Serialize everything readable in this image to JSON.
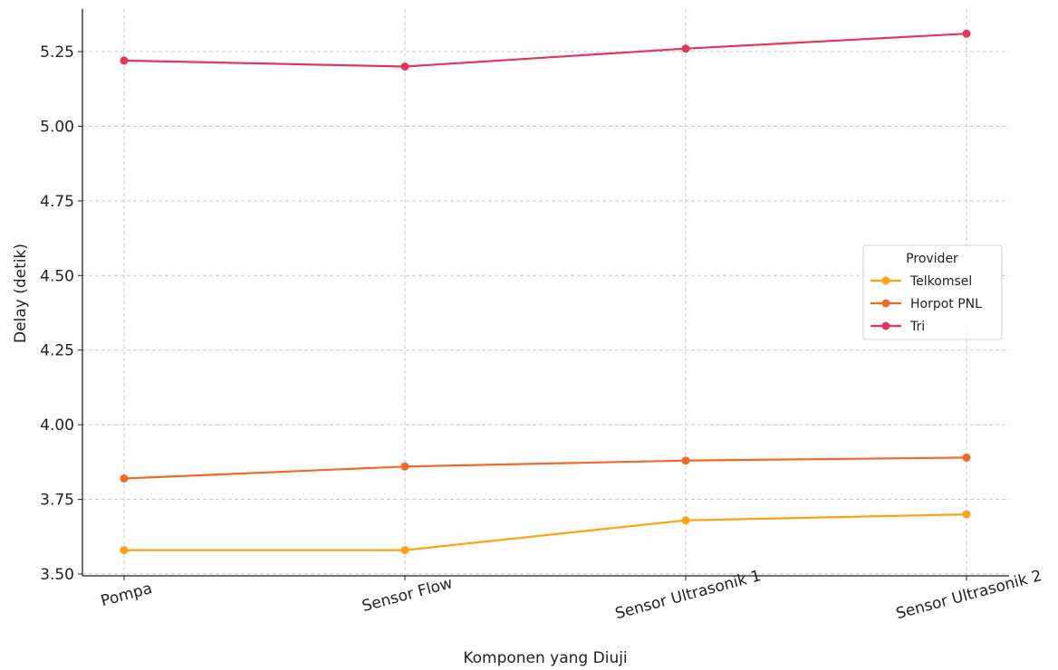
{
  "chart_data": {
    "type": "line",
    "title": "",
    "xlabel": "Komponen yang Diuji",
    "ylabel": "Delay (detik)",
    "categories": [
      "Pompa",
      "Sensor Flow",
      "Sensor Ultrasonik 1",
      "Sensor Ultrasonik 2"
    ],
    "ylim": [
      3.5,
      5.4
    ],
    "yticks": [
      "3.50",
      "3.75",
      "4.00",
      "4.25",
      "4.50",
      "4.75",
      "5.00",
      "5.25"
    ],
    "grid": true,
    "legend": {
      "title": "Provider",
      "placement": "center-right"
    },
    "series": [
      {
        "name": "Telkomsel",
        "color": "#ffa20d",
        "values": [
          3.58,
          3.58,
          3.68,
          3.7
        ]
      },
      {
        "name": "Horpot PNL",
        "color": "#f06a26",
        "values": [
          3.82,
          3.86,
          3.88,
          3.89
        ]
      },
      {
        "name": "Tri",
        "color": "#e8345a",
        "values": [
          5.22,
          5.2,
          5.26,
          5.31
        ]
      }
    ]
  }
}
